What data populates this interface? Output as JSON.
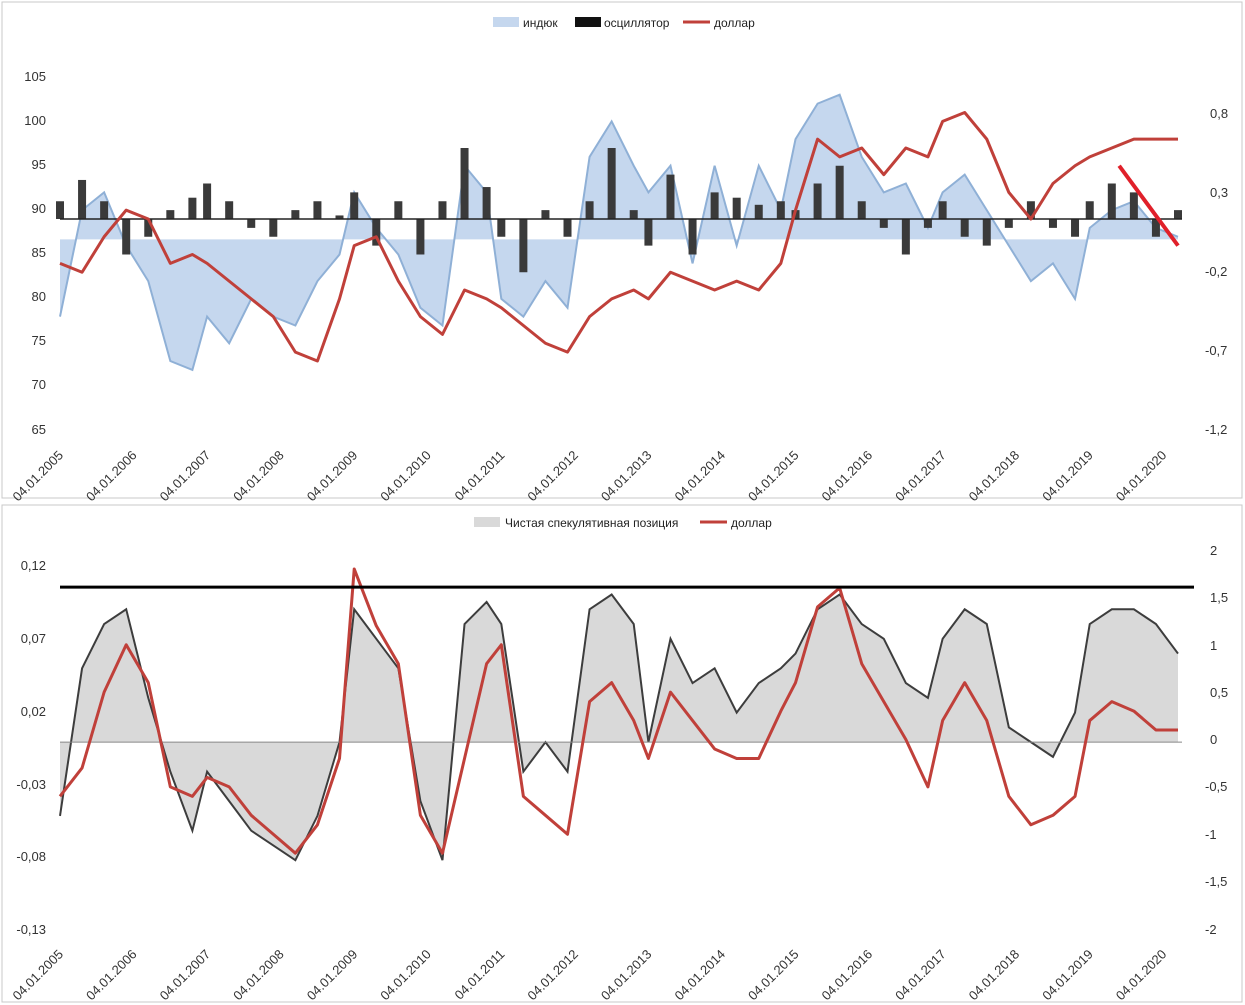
{
  "colors": {
    "index_fill": "#c5d7ee",
    "index_line": "#8fb0d6",
    "oscillator": "#3a3a3a",
    "dollar": "#c0403a",
    "spec_fill": "#d9d9d9",
    "spec_line": "#3d3d3d",
    "trend_red": "#e0202a",
    "threshold": "#000000",
    "grid_bg": "#ececec"
  },
  "chart_data": [
    {
      "type": "line",
      "legend": [
        "индюк",
        "осциллятор",
        "доллар"
      ],
      "legend_placement": "top",
      "x_labels": [
        "04.01.2005",
        "04.01.2006",
        "04.01.2007",
        "04.01.2008",
        "04.01.2009",
        "04.01.2010",
        "04.01.2011",
        "04.01.2012",
        "04.01.2013",
        "04.01.2014",
        "04.01.2015",
        "04.01.2016",
        "04.01.2017",
        "04.01.2018",
        "04.01.2019",
        "04.01.2020"
      ],
      "y_left": {
        "ylim": [
          65,
          105
        ],
        "ticks": [
          "65",
          "70",
          "75",
          "80",
          "85",
          "90",
          "95",
          "100",
          "105"
        ]
      },
      "y_right": {
        "ylim": [
          -1.2,
          0.8
        ],
        "ticks": [
          "-1,2",
          "-0,7",
          "-0,2",
          "0,3",
          "0,8"
        ]
      },
      "series": [
        {
          "name": "индюк",
          "style": "area",
          "axis": "left",
          "baseline": 86.7,
          "x": [
            2005.0,
            2005.3,
            2005.6,
            2005.9,
            2006.2,
            2006.5,
            2006.8,
            2007.0,
            2007.3,
            2007.6,
            2007.9,
            2008.2,
            2008.5,
            2008.8,
            2009.0,
            2009.3,
            2009.6,
            2009.9,
            2010.2,
            2010.5,
            2010.8,
            2011.0,
            2011.3,
            2011.6,
            2011.9,
            2012.2,
            2012.5,
            2012.8,
            2013.0,
            2013.3,
            2013.6,
            2013.9,
            2014.2,
            2014.5,
            2014.8,
            2015.0,
            2015.3,
            2015.6,
            2015.9,
            2016.2,
            2016.5,
            2016.8,
            2017.0,
            2017.3,
            2017.6,
            2017.9,
            2018.2,
            2018.5,
            2018.8,
            2019.0,
            2019.3,
            2019.6,
            2019.9,
            2020.2
          ],
          "values": [
            78,
            90,
            92,
            86,
            82,
            73,
            72,
            78,
            75,
            80,
            78,
            77,
            82,
            85,
            92,
            88,
            85,
            79,
            77,
            95,
            92,
            80,
            78,
            82,
            79,
            96,
            100,
            95,
            92,
            95,
            84,
            95,
            86,
            95,
            90,
            98,
            102,
            103,
            96,
            92,
            93,
            88,
            92,
            94,
            90,
            86,
            82,
            84,
            80,
            88,
            90,
            91,
            88,
            87
          ]
        },
        {
          "name": "осциллятор",
          "style": "bar",
          "axis": "right",
          "x": [
            2005.0,
            2005.3,
            2005.6,
            2005.9,
            2006.2,
            2006.5,
            2006.8,
            2007.0,
            2007.3,
            2007.6,
            2007.9,
            2008.2,
            2008.5,
            2008.8,
            2009.0,
            2009.3,
            2009.6,
            2009.9,
            2010.2,
            2010.5,
            2010.8,
            2011.0,
            2011.3,
            2011.6,
            2011.9,
            2012.2,
            2012.5,
            2012.8,
            2013.0,
            2013.3,
            2013.6,
            2013.9,
            2014.2,
            2014.5,
            2014.8,
            2015.0,
            2015.3,
            2015.6,
            2015.9,
            2016.2,
            2016.5,
            2016.8,
            2017.0,
            2017.3,
            2017.6,
            2017.9,
            2018.2,
            2018.5,
            2018.8,
            2019.0,
            2019.3,
            2019.6,
            2019.9,
            2020.2
          ],
          "values": [
            0.1,
            0.22,
            0.1,
            -0.2,
            -0.1,
            0.05,
            0.12,
            0.2,
            0.1,
            -0.05,
            -0.1,
            0.05,
            0.1,
            0.02,
            0.15,
            -0.15,
            0.1,
            -0.2,
            0.1,
            0.4,
            0.18,
            -0.1,
            -0.3,
            0.05,
            -0.1,
            0.1,
            0.4,
            0.05,
            -0.15,
            0.25,
            -0.2,
            0.15,
            0.12,
            0.08,
            0.1,
            0.05,
            0.2,
            0.3,
            0.1,
            -0.05,
            -0.2,
            -0.05,
            0.1,
            -0.1,
            -0.15,
            -0.05,
            0.1,
            -0.05,
            -0.1,
            0.1,
            0.2,
            0.15,
            -0.1,
            0.05
          ]
        },
        {
          "name": "доллар",
          "style": "line",
          "axis": "left",
          "x": [
            2005.0,
            2005.3,
            2005.6,
            2005.9,
            2006.2,
            2006.5,
            2006.8,
            2007.0,
            2007.3,
            2007.6,
            2007.9,
            2008.2,
            2008.5,
            2008.8,
            2009.0,
            2009.3,
            2009.6,
            2009.9,
            2010.2,
            2010.5,
            2010.8,
            2011.0,
            2011.3,
            2011.6,
            2011.9,
            2012.2,
            2012.5,
            2012.8,
            2013.0,
            2013.3,
            2013.6,
            2013.9,
            2014.2,
            2014.5,
            2014.8,
            2015.0,
            2015.3,
            2015.6,
            2015.9,
            2016.2,
            2016.5,
            2016.8,
            2017.0,
            2017.3,
            2017.6,
            2017.9,
            2018.2,
            2018.5,
            2018.8,
            2019.0,
            2019.3,
            2019.6,
            2019.9,
            2020.2
          ],
          "values": [
            84,
            83,
            87,
            90,
            89,
            84,
            85,
            84,
            82,
            80,
            78,
            74,
            73,
            80,
            86,
            87,
            82,
            78,
            76,
            81,
            80,
            79,
            77,
            75,
            74,
            78,
            80,
            81,
            80,
            83,
            82,
            81,
            82,
            81,
            84,
            90,
            98,
            96,
            97,
            94,
            97,
            96,
            100,
            101,
            98,
            92,
            89,
            93,
            95,
            96,
            97,
            98,
            98,
            98
          ]
        }
      ],
      "annotations": [
        {
          "type": "trend-line",
          "color": "red",
          "from": [
            2019.4,
            95
          ],
          "to": [
            2020.2,
            86
          ]
        }
      ]
    },
    {
      "type": "line",
      "legend": [
        "Чистая спекулятивная позиция",
        "доллар"
      ],
      "legend_placement": "top",
      "x_labels": [
        "04.01.2005",
        "04.01.2006",
        "04.01.2007",
        "04.01.2008",
        "04.01.2009",
        "04.01.2010",
        "04.01.2011",
        "04.01.2012",
        "04.01.2013",
        "04.01.2014",
        "04.01.2015",
        "04.01.2016",
        "04.01.2017",
        "04.01.2018",
        "04.01.2019",
        "04.01.2020"
      ],
      "y_left": {
        "ylim": [
          -0.13,
          0.12
        ],
        "ticks": [
          "-0,13",
          "-0,08",
          "-0,03",
          "0,02",
          "0,07",
          "0,12"
        ]
      },
      "y_right": {
        "ylim": [
          -2,
          2
        ],
        "ticks": [
          "-2",
          "-1,5",
          "-1",
          "-0,5",
          "0",
          "0,5",
          "1",
          "1,5",
          "2"
        ]
      },
      "series": [
        {
          "name": "Чистая спекулятивная позиция",
          "style": "area",
          "axis": "left",
          "x": [
            2005.0,
            2005.3,
            2005.6,
            2005.9,
            2006.2,
            2006.5,
            2006.8,
            2007.0,
            2007.3,
            2007.6,
            2007.9,
            2008.2,
            2008.5,
            2008.8,
            2009.0,
            2009.3,
            2009.6,
            2009.9,
            2010.2,
            2010.5,
            2010.8,
            2011.0,
            2011.3,
            2011.6,
            2011.9,
            2012.2,
            2012.5,
            2012.8,
            2013.0,
            2013.3,
            2013.6,
            2013.9,
            2014.2,
            2014.5,
            2014.8,
            2015.0,
            2015.3,
            2015.6,
            2015.9,
            2016.2,
            2016.5,
            2016.8,
            2017.0,
            2017.3,
            2017.6,
            2017.9,
            2018.2,
            2018.5,
            2018.8,
            2019.0,
            2019.3,
            2019.6,
            2019.9,
            2020.2
          ],
          "values": [
            -0.05,
            0.05,
            0.08,
            0.09,
            0.03,
            -0.02,
            -0.06,
            -0.02,
            -0.04,
            -0.06,
            -0.07,
            -0.08,
            -0.05,
            0.0,
            0.09,
            0.07,
            0.05,
            -0.04,
            -0.08,
            0.08,
            0.095,
            0.08,
            -0.02,
            0.0,
            -0.02,
            0.09,
            0.1,
            0.08,
            0.0,
            0.07,
            0.04,
            0.05,
            0.02,
            0.04,
            0.05,
            0.06,
            0.09,
            0.1,
            0.08,
            0.07,
            0.04,
            0.03,
            0.07,
            0.09,
            0.08,
            0.01,
            0.0,
            -0.01,
            0.02,
            0.08,
            0.09,
            0.09,
            0.08,
            0.06
          ]
        },
        {
          "name": "доллар",
          "style": "line",
          "axis": "right",
          "x": [
            2005.0,
            2005.3,
            2005.6,
            2005.9,
            2006.2,
            2006.5,
            2006.8,
            2007.0,
            2007.3,
            2007.6,
            2007.9,
            2008.2,
            2008.5,
            2008.8,
            2009.0,
            2009.3,
            2009.6,
            2009.9,
            2010.2,
            2010.5,
            2010.8,
            2011.0,
            2011.3,
            2011.6,
            2011.9,
            2012.2,
            2012.5,
            2012.8,
            2013.0,
            2013.3,
            2013.6,
            2013.9,
            2014.2,
            2014.5,
            2014.8,
            2015.0,
            2015.3,
            2015.6,
            2015.9,
            2016.2,
            2016.5,
            2016.8,
            2017.0,
            2017.3,
            2017.6,
            2017.9,
            2018.2,
            2018.5,
            2018.8,
            2019.0,
            2019.3,
            2019.6,
            2019.9,
            2020.2
          ],
          "values": [
            -0.6,
            -0.3,
            0.5,
            1.0,
            0.6,
            -0.5,
            -0.6,
            -0.4,
            -0.5,
            -0.8,
            -1.0,
            -1.2,
            -0.9,
            -0.2,
            1.8,
            1.2,
            0.8,
            -0.8,
            -1.2,
            -0.2,
            0.8,
            1.0,
            -0.6,
            -0.8,
            -1.0,
            0.4,
            0.6,
            0.2,
            -0.2,
            0.5,
            0.2,
            -0.1,
            -0.2,
            -0.2,
            0.3,
            0.6,
            1.4,
            1.6,
            0.8,
            0.4,
            0.0,
            -0.5,
            0.2,
            0.6,
            0.2,
            -0.6,
            -0.9,
            -0.8,
            -0.6,
            0.2,
            0.4,
            0.3,
            0.1,
            0.1
          ]
        }
      ],
      "annotations": [
        {
          "type": "horizontal-line",
          "color": "black",
          "axis": "left",
          "y": 0.105
        }
      ]
    }
  ]
}
